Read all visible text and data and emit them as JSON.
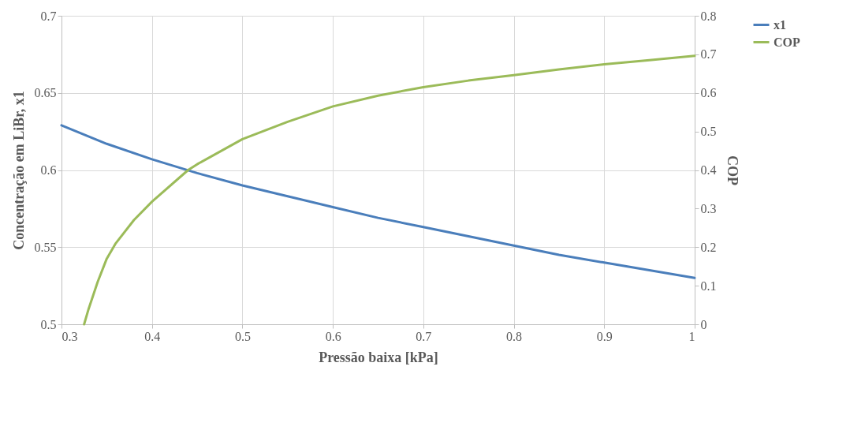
{
  "chart_data": {
    "type": "line",
    "xlabel": "Pressão baixa [kPa]",
    "ylabel": "Concentração em LiBr, x1",
    "y2label": "COP",
    "xlim": [
      0.3,
      1
    ],
    "xticks": [
      0.3,
      0.4,
      0.5,
      0.6,
      0.7,
      0.8,
      0.9,
      1
    ],
    "ylim": [
      0.5,
      0.7
    ],
    "yticks": [
      0.5,
      0.55,
      0.6,
      0.65,
      0.7
    ],
    "y2lim": [
      0,
      0.8
    ],
    "y2ticks": [
      0,
      0.1,
      0.2,
      0.3,
      0.4,
      0.5,
      0.6,
      0.7,
      0.8
    ],
    "grid": true,
    "legend": "right",
    "marker": "none",
    "line_style": "solid",
    "series": [
      {
        "name": "x1",
        "color": "#4a7ebb",
        "x": [
          0.3,
          0.35,
          0.4,
          0.45,
          0.5,
          0.55,
          0.6,
          0.65,
          0.7,
          0.75,
          0.8,
          0.85,
          0.9,
          0.95,
          1
        ],
        "values": [
          0.629,
          0.617,
          0.607,
          0.598,
          0.59,
          0.583,
          0.576,
          0.569,
          0.563,
          0.557,
          0.551,
          0.545,
          0.54,
          0.535,
          0.53
        ]
      },
      {
        "name": "COP",
        "color": "#9bbb59",
        "axis": "y2",
        "x": [
          0.325,
          0.33,
          0.34,
          0.35,
          0.36,
          0.38,
          0.4,
          0.44,
          0.45,
          0.5,
          0.55,
          0.6,
          0.65,
          0.7,
          0.75,
          0.8,
          0.85,
          0.9,
          0.95,
          1
        ],
        "values": [
          0,
          0.04,
          0.11,
          0.17,
          0.21,
          0.27,
          0.318,
          0.4,
          0.415,
          0.48,
          0.525,
          0.565,
          0.593,
          0.615,
          0.632,
          0.646,
          0.661,
          0.674,
          0.685,
          0.696
        ]
      }
    ]
  }
}
